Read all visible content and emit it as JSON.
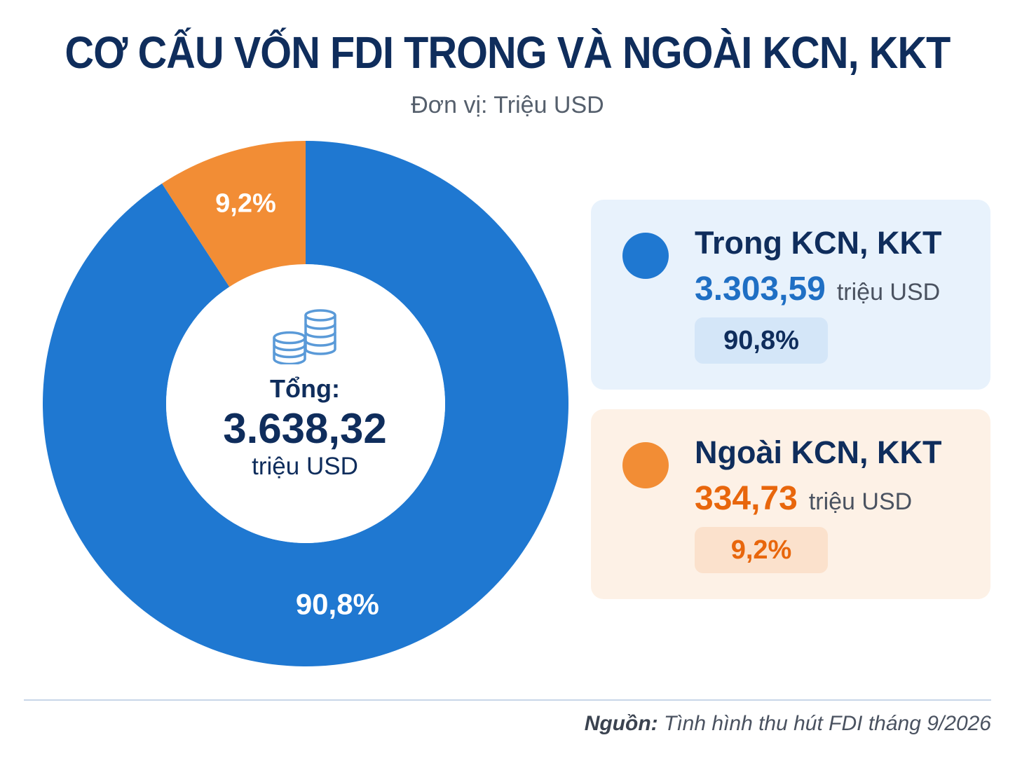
{
  "header": {
    "title": "CƠ CẤU VỐN FDI TRONG VÀ NGOÀI KCN, KKT",
    "subtitle": "Đơn vị: Triệu USD"
  },
  "center": {
    "icon": "coins-icon",
    "label": "Tổng:",
    "value": "3.638,32",
    "unit": "triệu USD"
  },
  "legend": [
    {
      "name": "Trong KCN, KKT",
      "value": "3.303,59",
      "unit": "triệu USD",
      "percent": "90,8%",
      "color": "#1f78d1",
      "text_color": "#1f6fc4"
    },
    {
      "name": "Ngoài KCN, KKT",
      "value": "334,73",
      "unit": "triệu USD",
      "percent": "9,2%",
      "color": "#f28d35",
      "text_color": "#e8660c"
    }
  ],
  "source": {
    "label": "Nguồn:",
    "text": "Tình hình thu hút FDI tháng 9/2026"
  },
  "chart_data": {
    "type": "pie",
    "style": "donut",
    "title": "CƠ CẤU VỐN FDI TRONG VÀ NGOÀI KCN, KKT",
    "subtitle": "Đơn vị: Triệu USD",
    "unit": "triệu USD",
    "total": 3638.32,
    "slices": [
      {
        "label": "Trong KCN, KKT",
        "value": 3303.59,
        "percent_label": "90,8%",
        "color": "#1f78d1"
      },
      {
        "label": "Ngoài KCN, KKT",
        "value": 334.73,
        "percent_label": "9,2%",
        "color": "#f28d35"
      }
    ],
    "legend_position": "right"
  }
}
